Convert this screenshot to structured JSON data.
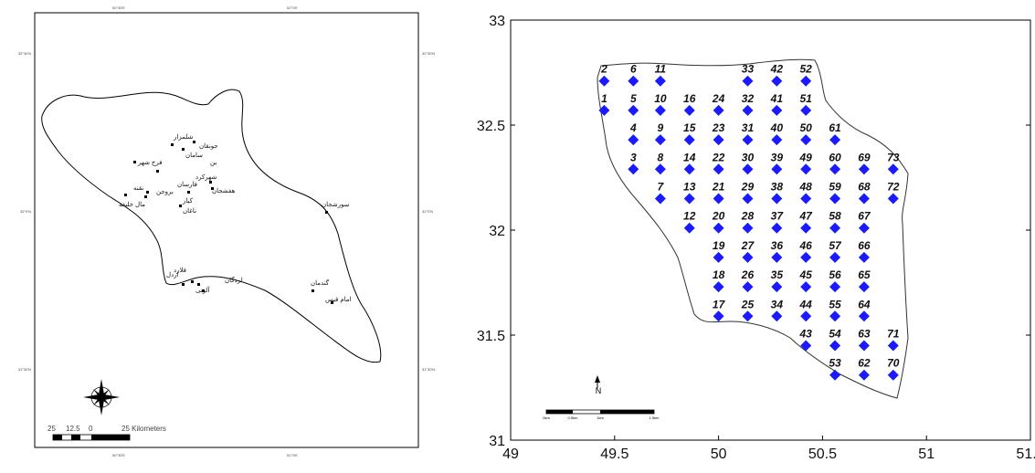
{
  "left_map": {
    "top_ticks": [
      "50°30'E",
      "51°0'E"
    ],
    "bottom_ticks": [
      "50°30'E",
      "51°0'E"
    ],
    "left_ticks": [
      "32°30'N",
      "32°0'N",
      "31°30'N"
    ],
    "right_ticks": [
      "32°30'N",
      "32°0'N",
      "31°30'N"
    ],
    "places": [
      {
        "name": "شهرکرد"
      },
      {
        "name": "فرخ شهر"
      },
      {
        "name": "سامان"
      },
      {
        "name": "بن"
      },
      {
        "name": "شلمزار"
      },
      {
        "name": "جونقان"
      },
      {
        "name": "فارسان"
      },
      {
        "name": "بروجن"
      },
      {
        "name": "نقنه"
      },
      {
        "name": "لردگان"
      },
      {
        "name": "کیار"
      },
      {
        "name": "هفشجان"
      },
      {
        "name": "سورشجان"
      },
      {
        "name": "گندمان"
      },
      {
        "name": "اردل"
      },
      {
        "name": "ناغان"
      },
      {
        "name": "مال خلیفه"
      },
      {
        "name": "آلونی"
      },
      {
        "name": "فلارد"
      },
      {
        "name": "امام قیس"
      }
    ],
    "scale_bar": {
      "labels": [
        "25",
        "12.5",
        "0",
        "25 Kilometers"
      ]
    }
  },
  "right_map": {
    "x_ticks": [
      "49",
      "49.5",
      "50",
      "50.5",
      "51",
      "51.5"
    ],
    "y_ticks": [
      "31",
      "31.5",
      "32",
      "32.5",
      "33"
    ],
    "north_label": "N",
    "scale_labels": [
      "0km",
      "0.5km",
      "1km",
      "1.5km"
    ],
    "marker_color": "#1a1aff",
    "points": [
      {
        "id": "1",
        "lon": 49.45,
        "lat": 32.57
      },
      {
        "id": "2",
        "lon": 49.45,
        "lat": 32.71
      },
      {
        "id": "3",
        "lon": 49.59,
        "lat": 32.29
      },
      {
        "id": "4",
        "lon": 49.59,
        "lat": 32.43
      },
      {
        "id": "5",
        "lon": 49.59,
        "lat": 32.57
      },
      {
        "id": "6",
        "lon": 49.59,
        "lat": 32.71
      },
      {
        "id": "7",
        "lon": 49.72,
        "lat": 32.15
      },
      {
        "id": "8",
        "lon": 49.72,
        "lat": 32.29
      },
      {
        "id": "9",
        "lon": 49.72,
        "lat": 32.43
      },
      {
        "id": "10",
        "lon": 49.72,
        "lat": 32.57
      },
      {
        "id": "11",
        "lon": 49.72,
        "lat": 32.71
      },
      {
        "id": "12",
        "lon": 49.86,
        "lat": 32.01
      },
      {
        "id": "13",
        "lon": 49.86,
        "lat": 32.15
      },
      {
        "id": "14",
        "lon": 49.86,
        "lat": 32.29
      },
      {
        "id": "15",
        "lon": 49.86,
        "lat": 32.43
      },
      {
        "id": "16",
        "lon": 49.86,
        "lat": 32.57
      },
      {
        "id": "17",
        "lon": 50.0,
        "lat": 31.59
      },
      {
        "id": "18",
        "lon": 50.0,
        "lat": 31.73
      },
      {
        "id": "19",
        "lon": 50.0,
        "lat": 31.87
      },
      {
        "id": "20",
        "lon": 50.0,
        "lat": 32.01
      },
      {
        "id": "21",
        "lon": 50.0,
        "lat": 32.15
      },
      {
        "id": "22",
        "lon": 50.0,
        "lat": 32.29
      },
      {
        "id": "23",
        "lon": 50.0,
        "lat": 32.43
      },
      {
        "id": "24",
        "lon": 50.0,
        "lat": 32.57
      },
      {
        "id": "25",
        "lon": 50.14,
        "lat": 31.59
      },
      {
        "id": "26",
        "lon": 50.14,
        "lat": 31.73
      },
      {
        "id": "27",
        "lon": 50.14,
        "lat": 31.87
      },
      {
        "id": "28",
        "lon": 50.14,
        "lat": 32.01
      },
      {
        "id": "29",
        "lon": 50.14,
        "lat": 32.15
      },
      {
        "id": "30",
        "lon": 50.14,
        "lat": 32.29
      },
      {
        "id": "31",
        "lon": 50.14,
        "lat": 32.43
      },
      {
        "id": "32",
        "lon": 50.14,
        "lat": 32.57
      },
      {
        "id": "33",
        "lon": 50.14,
        "lat": 32.71
      },
      {
        "id": "34",
        "lon": 50.28,
        "lat": 31.59
      },
      {
        "id": "35",
        "lon": 50.28,
        "lat": 31.73
      },
      {
        "id": "36",
        "lon": 50.28,
        "lat": 31.87
      },
      {
        "id": "37",
        "lon": 50.28,
        "lat": 32.01
      },
      {
        "id": "38",
        "lon": 50.28,
        "lat": 32.15
      },
      {
        "id": "39",
        "lon": 50.28,
        "lat": 32.29
      },
      {
        "id": "40",
        "lon": 50.28,
        "lat": 32.43
      },
      {
        "id": "41",
        "lon": 50.28,
        "lat": 32.57
      },
      {
        "id": "42",
        "lon": 50.28,
        "lat": 32.71
      },
      {
        "id": "43",
        "lon": 50.42,
        "lat": 31.45
      },
      {
        "id": "44",
        "lon": 50.42,
        "lat": 31.59
      },
      {
        "id": "45",
        "lon": 50.42,
        "lat": 31.73
      },
      {
        "id": "46",
        "lon": 50.42,
        "lat": 31.87
      },
      {
        "id": "47",
        "lon": 50.42,
        "lat": 32.01
      },
      {
        "id": "48",
        "lon": 50.42,
        "lat": 32.15
      },
      {
        "id": "49",
        "lon": 50.42,
        "lat": 32.29
      },
      {
        "id": "50",
        "lon": 50.42,
        "lat": 32.43
      },
      {
        "id": "51",
        "lon": 50.42,
        "lat": 32.57
      },
      {
        "id": "52",
        "lon": 50.42,
        "lat": 32.71
      },
      {
        "id": "53",
        "lon": 50.56,
        "lat": 31.31
      },
      {
        "id": "54",
        "lon": 50.56,
        "lat": 31.45
      },
      {
        "id": "55",
        "lon": 50.56,
        "lat": 31.59
      },
      {
        "id": "56",
        "lon": 50.56,
        "lat": 31.73
      },
      {
        "id": "57",
        "lon": 50.56,
        "lat": 31.87
      },
      {
        "id": "58",
        "lon": 50.56,
        "lat": 32.01
      },
      {
        "id": "59",
        "lon": 50.56,
        "lat": 32.15
      },
      {
        "id": "60",
        "lon": 50.56,
        "lat": 32.29
      },
      {
        "id": "61",
        "lon": 50.56,
        "lat": 32.43
      },
      {
        "id": "62",
        "lon": 50.7,
        "lat": 31.31
      },
      {
        "id": "63",
        "lon": 50.7,
        "lat": 31.45
      },
      {
        "id": "64",
        "lon": 50.7,
        "lat": 31.59
      },
      {
        "id": "65",
        "lon": 50.7,
        "lat": 31.73
      },
      {
        "id": "66",
        "lon": 50.7,
        "lat": 31.87
      },
      {
        "id": "67",
        "lon": 50.7,
        "lat": 32.01
      },
      {
        "id": "68",
        "lon": 50.7,
        "lat": 32.15
      },
      {
        "id": "69",
        "lon": 50.7,
        "lat": 32.29
      },
      {
        "id": "70",
        "lon": 50.84,
        "lat": 31.31
      },
      {
        "id": "71",
        "lon": 50.84,
        "lat": 31.45
      },
      {
        "id": "72",
        "lon": 50.84,
        "lat": 32.15
      },
      {
        "id": "73",
        "lon": 50.84,
        "lat": 32.29
      }
    ]
  }
}
